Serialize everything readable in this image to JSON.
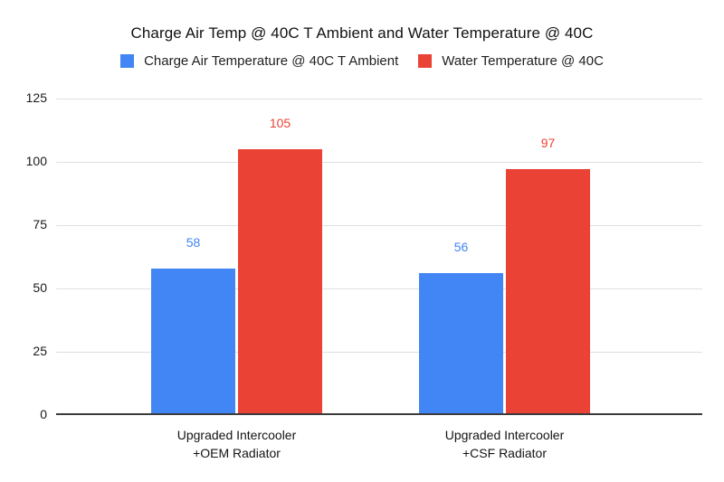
{
  "title": "Charge Air Temp @ 40C T Ambient and Water Temperature @ 40C",
  "legend": {
    "items": [
      {
        "label": "Charge Air Temperature @ 40C T Ambient",
        "color": "#4285F4"
      },
      {
        "label": "Water Temperature @ 40C",
        "color": "#EA4335"
      }
    ]
  },
  "colors": {
    "series_blue": "#4285F4",
    "series_red": "#EA4335",
    "gridline": "#e0e0e0",
    "baseline": "#3b3b3b",
    "background": "#ffffff"
  },
  "chart_data": {
    "type": "bar",
    "title": "Charge Air Temp @ 40C T Ambient and Water Temperature @ 40C",
    "categories": [
      "Upgraded Intercooler\n+OEM Radiator",
      "Upgraded Intercooler\n+CSF Radiator"
    ],
    "series": [
      {
        "name": "Charge Air Temperature @ 40C T Ambient",
        "color": "#4285F4",
        "values": [
          58,
          56
        ]
      },
      {
        "name": "Water Temperature @ 40C",
        "color": "#EA4335",
        "values": [
          105,
          97
        ]
      }
    ],
    "xlabel": "",
    "ylabel": "",
    "ylim": [
      0,
      125
    ],
    "yticks": [
      0,
      25,
      50,
      75,
      100,
      125
    ],
    "grid": true,
    "legend_position": "top",
    "data_labels": true
  }
}
